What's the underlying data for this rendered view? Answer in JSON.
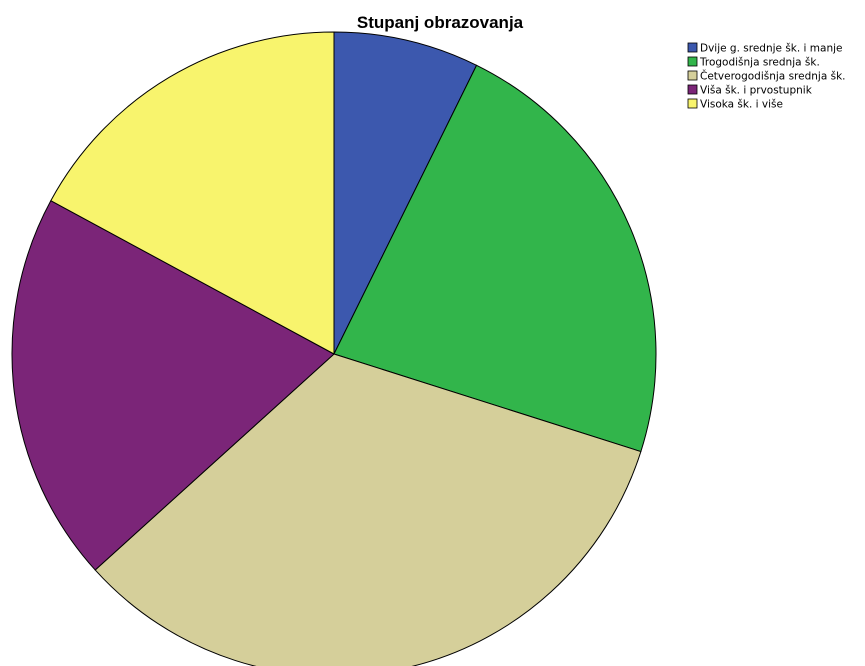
{
  "chart_data": {
    "type": "pie",
    "title": "Stupanj obrazovanja",
    "categories": [
      "Dvije g. srednje šk. i manje",
      "Trogodišnja srednja šk.",
      "Četverogodišnja srednja šk.",
      "Viša šk. i prvostupnik",
      "Visoka šk. i više"
    ],
    "values": [
      7.3,
      22.6,
      33.4,
      19.6,
      17.1
    ],
    "colors": [
      "#3c58ae",
      "#32b54b",
      "#d5cf9a",
      "#7b2578",
      "#f8f46d"
    ],
    "start_angle_deg": 0,
    "direction": "clockwise",
    "legend": "top-right",
    "legend_entries": [
      "Dvije g. srednje šk. i manje",
      "Trogodišnja srednja šk.",
      "Četverogodišnja srednja šk.",
      "Viša šk. i prvostupnik",
      "Visoka šk. i više"
    ]
  }
}
